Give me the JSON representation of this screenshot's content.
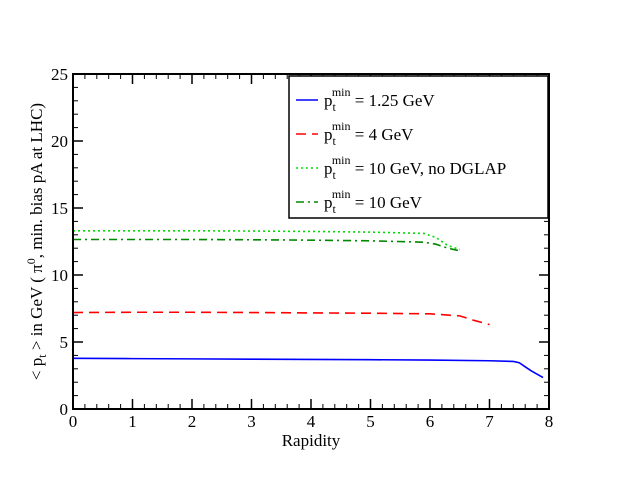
{
  "chart_data": {
    "type": "line",
    "title": "",
    "xlabel": "Rapidity",
    "ylabel": {
      "prefix": "< p",
      "sub": "t",
      "mid": " > in GeV ( π",
      "sup": "0",
      "suffix": ", min. bias pA at LHC)"
    },
    "xlim": [
      0,
      8
    ],
    "ylim": [
      0,
      25
    ],
    "x_ticks": [
      0,
      1,
      2,
      3,
      4,
      5,
      6,
      7,
      8
    ],
    "y_ticks": [
      0,
      5,
      10,
      15,
      20,
      25
    ],
    "x_tick_labels": [
      "0",
      "1",
      "2",
      "3",
      "4",
      "5",
      "6",
      "7",
      "8"
    ],
    "y_tick_labels": [
      "0",
      "5",
      "10",
      "15",
      "20",
      "25"
    ],
    "legend_position": "top-right",
    "series": [
      {
        "name": "pt_min = 1.25 GeV",
        "legend": {
          "base": "p",
          "sub": "t",
          "sup": "min",
          "rest": " = 1.25 GeV"
        },
        "color": "#0000ff",
        "dash": "solid",
        "x": [
          0,
          1,
          2,
          3,
          4,
          5,
          6,
          7,
          7.4,
          7.5,
          7.6,
          7.7,
          7.8,
          7.9
        ],
        "y": [
          3.78,
          3.76,
          3.74,
          3.72,
          3.7,
          3.68,
          3.65,
          3.6,
          3.55,
          3.45,
          3.15,
          2.85,
          2.6,
          2.35
        ]
      },
      {
        "name": "pt_min = 4 GeV",
        "legend": {
          "base": "p",
          "sub": "t",
          "sup": "min",
          "rest": " = 4 GeV"
        },
        "color": "#ff0000",
        "dash": "dashed",
        "x": [
          0,
          1,
          2,
          3,
          4,
          5,
          6,
          6.5,
          6.75,
          7.0
        ],
        "y": [
          7.2,
          7.22,
          7.22,
          7.2,
          7.17,
          7.15,
          7.1,
          6.95,
          6.6,
          6.3
        ]
      },
      {
        "name": "pt_min = 10 GeV, no DGLAP",
        "legend": {
          "base": "p",
          "sub": "t",
          "sup": "min",
          "rest": " = 10 GeV, no DGLAP"
        },
        "color": "#00dd00",
        "dash": "dotted",
        "x": [
          0,
          1,
          2,
          3,
          4,
          5,
          5.9,
          6.1,
          6.3,
          6.5
        ],
        "y": [
          13.3,
          13.3,
          13.3,
          13.28,
          13.25,
          13.2,
          13.1,
          12.8,
          12.2,
          11.9
        ]
      },
      {
        "name": "pt_min = 10 GeV",
        "legend": {
          "base": "p",
          "sub": "t",
          "sup": "min",
          "rest": " = 10 GeV"
        },
        "color": "#008800",
        "dash": "dashdot",
        "x": [
          0,
          1,
          2,
          3,
          4,
          5,
          5.9,
          6.1,
          6.3,
          6.5
        ],
        "y": [
          12.65,
          12.65,
          12.65,
          12.63,
          12.6,
          12.55,
          12.45,
          12.3,
          12.0,
          11.8
        ]
      }
    ]
  }
}
